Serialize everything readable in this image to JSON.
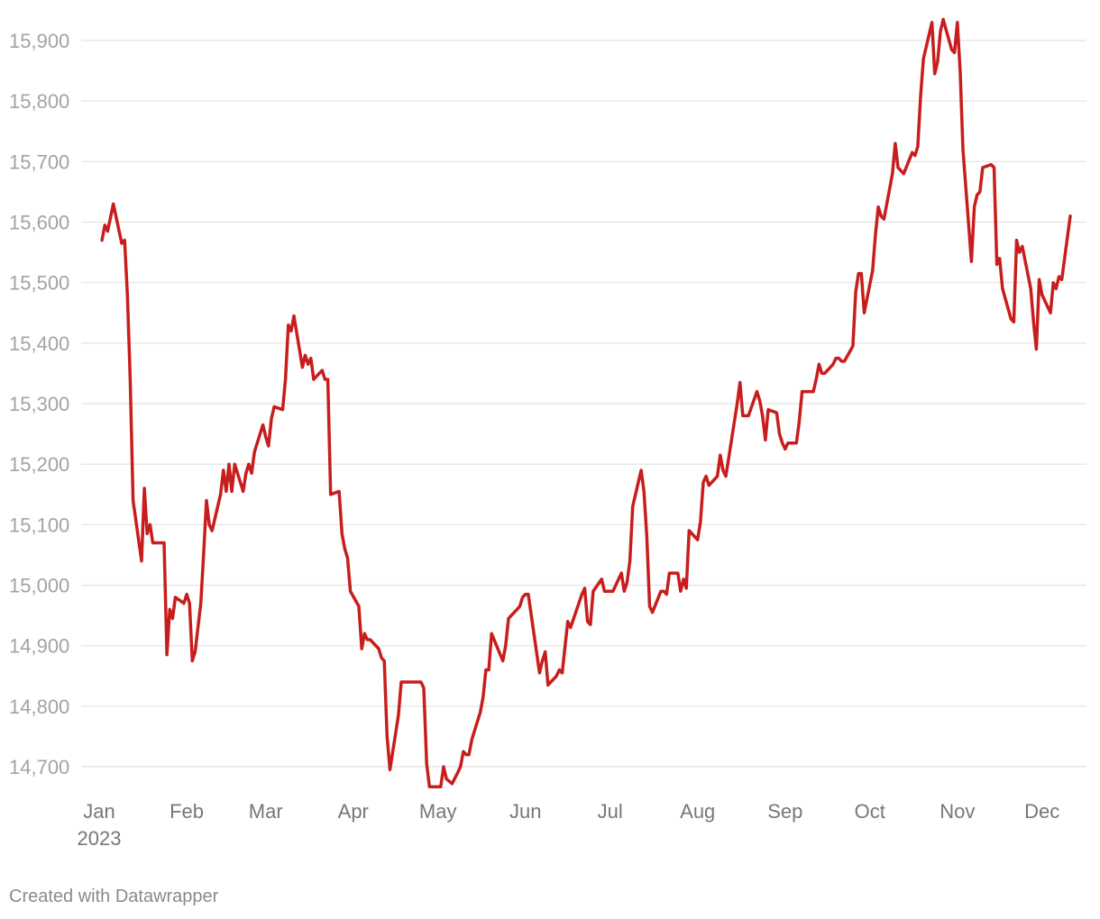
{
  "chart_data": {
    "type": "line",
    "title": "",
    "xlabel": "",
    "ylabel": "",
    "ylim": [
      14665,
      15940
    ],
    "y_ticks": [
      14700,
      14800,
      14900,
      15000,
      15100,
      15200,
      15300,
      15400,
      15500,
      15600,
      15700,
      15800,
      15900
    ],
    "y_tick_labels": [
      "14,700",
      "14,800",
      "14,900",
      "15,000",
      "15,100",
      "15,200",
      "15,300",
      "15,400",
      "15,500",
      "15,600",
      "15,700",
      "15,800",
      "15,900"
    ],
    "x_ticks": [
      {
        "date": "2023-01-01",
        "label": "Jan",
        "sublabel": "2023"
      },
      {
        "date": "2023-02-01",
        "label": "Feb",
        "sublabel": ""
      },
      {
        "date": "2023-03-01",
        "label": "Mar",
        "sublabel": ""
      },
      {
        "date": "2023-04-01",
        "label": "Apr",
        "sublabel": ""
      },
      {
        "date": "2023-05-01",
        "label": "May",
        "sublabel": ""
      },
      {
        "date": "2023-06-01",
        "label": "Jun",
        "sublabel": ""
      },
      {
        "date": "2023-07-01",
        "label": "Jul",
        "sublabel": ""
      },
      {
        "date": "2023-08-01",
        "label": "Aug",
        "sublabel": ""
      },
      {
        "date": "2023-09-01",
        "label": "Sep",
        "sublabel": ""
      },
      {
        "date": "2023-10-01",
        "label": "Oct",
        "sublabel": ""
      },
      {
        "date": "2023-11-01",
        "label": "Nov",
        "sublabel": ""
      },
      {
        "date": "2023-12-01",
        "label": "Dec",
        "sublabel": ""
      }
    ],
    "grid": true,
    "color": "#c71e1d",
    "series": [
      {
        "points": [
          [
            "2023-01-02",
            15570
          ],
          [
            "2023-01-03",
            15595
          ],
          [
            "2023-01-04",
            15585
          ],
          [
            "2023-01-06",
            15630
          ],
          [
            "2023-01-09",
            15565
          ],
          [
            "2023-01-10",
            15570
          ],
          [
            "2023-01-11",
            15480
          ],
          [
            "2023-01-12",
            15340
          ],
          [
            "2023-01-13",
            15140
          ],
          [
            "2023-01-16",
            15040
          ],
          [
            "2023-01-17",
            15160
          ],
          [
            "2023-01-18",
            15085
          ],
          [
            "2023-01-19",
            15100
          ],
          [
            "2023-01-20",
            15070
          ],
          [
            "2023-01-23",
            15070
          ],
          [
            "2023-01-24",
            15070
          ],
          [
            "2023-01-25",
            14885
          ],
          [
            "2023-01-26",
            14960
          ],
          [
            "2023-01-27",
            14945
          ],
          [
            "2023-01-28",
            14980
          ],
          [
            "2023-01-31",
            14970
          ],
          [
            "2023-02-01",
            14985
          ],
          [
            "2023-02-02",
            14970
          ],
          [
            "2023-02-03",
            14875
          ],
          [
            "2023-02-04",
            14890
          ],
          [
            "2023-02-06",
            14970
          ],
          [
            "2023-02-07",
            15050
          ],
          [
            "2023-02-08",
            15140
          ],
          [
            "2023-02-09",
            15100
          ],
          [
            "2023-02-10",
            15090
          ],
          [
            "2023-02-13",
            15150
          ],
          [
            "2023-02-14",
            15190
          ],
          [
            "2023-02-15",
            15155
          ],
          [
            "2023-02-16",
            15200
          ],
          [
            "2023-02-17",
            15155
          ],
          [
            "2023-02-18",
            15200
          ],
          [
            "2023-02-21",
            15155
          ],
          [
            "2023-02-22",
            15185
          ],
          [
            "2023-02-23",
            15200
          ],
          [
            "2023-02-24",
            15185
          ],
          [
            "2023-02-25",
            15220
          ],
          [
            "2023-02-28",
            15265
          ],
          [
            "2023-03-01",
            15245
          ],
          [
            "2023-03-02",
            15230
          ],
          [
            "2023-03-03",
            15275
          ],
          [
            "2023-03-04",
            15295
          ],
          [
            "2023-03-07",
            15290
          ],
          [
            "2023-03-08",
            15340
          ],
          [
            "2023-03-09",
            15430
          ],
          [
            "2023-03-10",
            15420
          ],
          [
            "2023-03-11",
            15445
          ],
          [
            "2023-03-14",
            15360
          ],
          [
            "2023-03-15",
            15380
          ],
          [
            "2023-03-16",
            15365
          ],
          [
            "2023-03-17",
            15375
          ],
          [
            "2023-03-18",
            15340
          ],
          [
            "2023-03-21",
            15355
          ],
          [
            "2023-03-22",
            15340
          ],
          [
            "2023-03-23",
            15340
          ],
          [
            "2023-03-24",
            15150
          ],
          [
            "2023-03-27",
            15155
          ],
          [
            "2023-03-28",
            15085
          ],
          [
            "2023-03-29",
            15060
          ],
          [
            "2023-03-30",
            15045
          ],
          [
            "2023-03-31",
            14990
          ],
          [
            "2023-04-03",
            14965
          ],
          [
            "2023-04-04",
            14895
          ],
          [
            "2023-04-05",
            14920
          ],
          [
            "2023-04-06",
            14910
          ],
          [
            "2023-04-07",
            14910
          ],
          [
            "2023-04-10",
            14895
          ],
          [
            "2023-04-11",
            14880
          ],
          [
            "2023-04-12",
            14875
          ],
          [
            "2023-04-13",
            14750
          ],
          [
            "2023-04-14",
            14695
          ],
          [
            "2023-04-17",
            14785
          ],
          [
            "2023-04-18",
            14840
          ],
          [
            "2023-04-25",
            14840
          ],
          [
            "2023-04-26",
            14830
          ],
          [
            "2023-04-27",
            14705
          ],
          [
            "2023-04-28",
            14667
          ],
          [
            "2023-05-02",
            14667
          ],
          [
            "2023-05-03",
            14700
          ],
          [
            "2023-05-04",
            14680
          ],
          [
            "2023-05-06",
            14672
          ],
          [
            "2023-05-08",
            14690
          ],
          [
            "2023-05-09",
            14700
          ],
          [
            "2023-05-10",
            14725
          ],
          [
            "2023-05-11",
            14720
          ],
          [
            "2023-05-12",
            14720
          ],
          [
            "2023-05-13",
            14745
          ],
          [
            "2023-05-16",
            14790
          ],
          [
            "2023-05-17",
            14815
          ],
          [
            "2023-05-18",
            14860
          ],
          [
            "2023-05-19",
            14860
          ],
          [
            "2023-05-20",
            14920
          ],
          [
            "2023-05-24",
            14875
          ],
          [
            "2023-05-25",
            14900
          ],
          [
            "2023-05-26",
            14945
          ],
          [
            "2023-05-29",
            14960
          ],
          [
            "2023-05-30",
            14965
          ],
          [
            "2023-05-31",
            14980
          ],
          [
            "2023-06-01",
            14985
          ],
          [
            "2023-06-02",
            14985
          ],
          [
            "2023-06-06",
            14855
          ],
          [
            "2023-06-07",
            14875
          ],
          [
            "2023-06-08",
            14890
          ],
          [
            "2023-06-09",
            14835
          ],
          [
            "2023-06-12",
            14850
          ],
          [
            "2023-06-13",
            14860
          ],
          [
            "2023-06-14",
            14855
          ],
          [
            "2023-06-16",
            14940
          ],
          [
            "2023-06-17",
            14930
          ],
          [
            "2023-06-21",
            14985
          ],
          [
            "2023-06-22",
            14995
          ],
          [
            "2023-06-23",
            14940
          ],
          [
            "2023-06-24",
            14935
          ],
          [
            "2023-06-25",
            14990
          ],
          [
            "2023-06-28",
            15010
          ],
          [
            "2023-06-29",
            14990
          ],
          [
            "2023-07-02",
            14990
          ],
          [
            "2023-07-05",
            15020
          ],
          [
            "2023-07-06",
            14990
          ],
          [
            "2023-07-07",
            15005
          ],
          [
            "2023-07-08",
            15040
          ],
          [
            "2023-07-09",
            15130
          ],
          [
            "2023-07-12",
            15190
          ],
          [
            "2023-07-13",
            15155
          ],
          [
            "2023-07-14",
            15080
          ],
          [
            "2023-07-15",
            14965
          ],
          [
            "2023-07-16",
            14955
          ],
          [
            "2023-07-19",
            14990
          ],
          [
            "2023-07-20",
            14990
          ],
          [
            "2023-07-21",
            14985
          ],
          [
            "2023-07-22",
            15020
          ],
          [
            "2023-07-25",
            15020
          ],
          [
            "2023-07-26",
            14990
          ],
          [
            "2023-07-27",
            15010
          ],
          [
            "2023-07-28",
            14995
          ],
          [
            "2023-07-29",
            15090
          ],
          [
            "2023-08-01",
            15075
          ],
          [
            "2023-08-02",
            15105
          ],
          [
            "2023-08-03",
            15170
          ],
          [
            "2023-08-04",
            15180
          ],
          [
            "2023-08-05",
            15165
          ],
          [
            "2023-08-08",
            15180
          ],
          [
            "2023-08-09",
            15215
          ],
          [
            "2023-08-10",
            15190
          ],
          [
            "2023-08-11",
            15180
          ],
          [
            "2023-08-12",
            15210
          ],
          [
            "2023-08-15",
            15300
          ],
          [
            "2023-08-16",
            15335
          ],
          [
            "2023-08-17",
            15280
          ],
          [
            "2023-08-19",
            15280
          ],
          [
            "2023-08-22",
            15320
          ],
          [
            "2023-08-23",
            15305
          ],
          [
            "2023-08-24",
            15280
          ],
          [
            "2023-08-25",
            15240
          ],
          [
            "2023-08-26",
            15290
          ],
          [
            "2023-08-29",
            15285
          ],
          [
            "2023-08-30",
            15250
          ],
          [
            "2023-08-31",
            15235
          ],
          [
            "2023-09-01",
            15225
          ],
          [
            "2023-09-02",
            15235
          ],
          [
            "2023-09-05",
            15235
          ],
          [
            "2023-09-06",
            15270
          ],
          [
            "2023-09-07",
            15320
          ],
          [
            "2023-09-08",
            15320
          ],
          [
            "2023-09-11",
            15320
          ],
          [
            "2023-09-12",
            15340
          ],
          [
            "2023-09-13",
            15365
          ],
          [
            "2023-09-14",
            15350
          ],
          [
            "2023-09-15",
            15350
          ],
          [
            "2023-09-18",
            15365
          ],
          [
            "2023-09-19",
            15375
          ],
          [
            "2023-09-20",
            15375
          ],
          [
            "2023-09-21",
            15370
          ],
          [
            "2023-09-22",
            15370
          ],
          [
            "2023-09-25",
            15395
          ],
          [
            "2023-09-26",
            15485
          ],
          [
            "2023-09-27",
            15515
          ],
          [
            "2023-09-28",
            15515
          ],
          [
            "2023-09-29",
            15450
          ],
          [
            "2023-10-02",
            15520
          ],
          [
            "2023-10-03",
            15580
          ],
          [
            "2023-10-04",
            15625
          ],
          [
            "2023-10-05",
            15610
          ],
          [
            "2023-10-06",
            15605
          ],
          [
            "2023-10-09",
            15680
          ],
          [
            "2023-10-10",
            15730
          ],
          [
            "2023-10-11",
            15690
          ],
          [
            "2023-10-13",
            15680
          ],
          [
            "2023-10-16",
            15715
          ],
          [
            "2023-10-17",
            15710
          ],
          [
            "2023-10-18",
            15725
          ],
          [
            "2023-10-19",
            15810
          ],
          [
            "2023-10-20",
            15870
          ],
          [
            "2023-10-23",
            15930
          ],
          [
            "2023-10-24",
            15845
          ],
          [
            "2023-10-25",
            15865
          ],
          [
            "2023-10-26",
            15915
          ],
          [
            "2023-10-27",
            15935
          ],
          [
            "2023-10-30",
            15885
          ],
          [
            "2023-10-31",
            15880
          ],
          [
            "2023-11-01",
            15930
          ],
          [
            "2023-11-02",
            15850
          ],
          [
            "2023-11-03",
            15720
          ],
          [
            "2023-11-06",
            15535
          ],
          [
            "2023-11-07",
            15625
          ],
          [
            "2023-11-08",
            15645
          ],
          [
            "2023-11-09",
            15650
          ],
          [
            "2023-11-10",
            15690
          ],
          [
            "2023-11-13",
            15695
          ],
          [
            "2023-11-14",
            15690
          ],
          [
            "2023-11-15",
            15530
          ],
          [
            "2023-11-16",
            15540
          ],
          [
            "2023-11-17",
            15490
          ],
          [
            "2023-11-20",
            15440
          ],
          [
            "2023-11-21",
            15435
          ],
          [
            "2023-11-22",
            15570
          ],
          [
            "2023-11-23",
            15550
          ],
          [
            "2023-11-24",
            15560
          ],
          [
            "2023-11-27",
            15490
          ],
          [
            "2023-11-28",
            15435
          ],
          [
            "2023-11-29",
            15390
          ],
          [
            "2023-11-30",
            15505
          ],
          [
            "2023-12-01",
            15480
          ],
          [
            "2023-12-04",
            15450
          ],
          [
            "2023-12-05",
            15500
          ],
          [
            "2023-12-06",
            15490
          ],
          [
            "2023-12-07",
            15510
          ],
          [
            "2023-12-08",
            15505
          ],
          [
            "2023-12-11",
            15610
          ]
        ]
      }
    ]
  },
  "footer": {
    "credit": "Created with Datawrapper"
  }
}
